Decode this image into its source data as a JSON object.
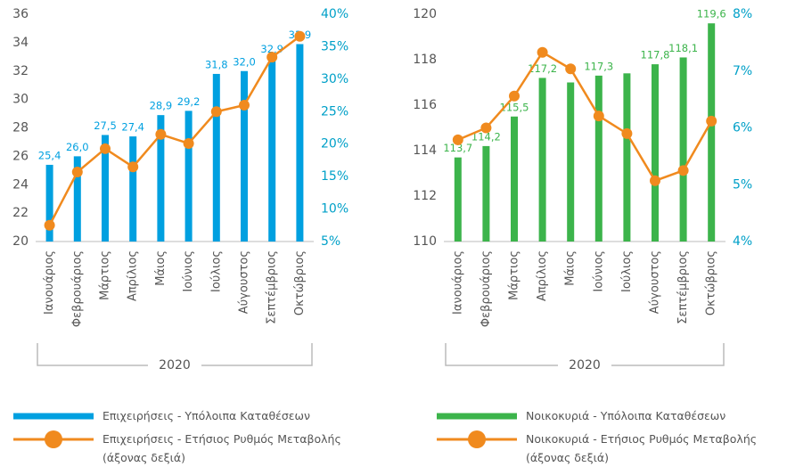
{
  "chart_data": [
    {
      "type": "combo",
      "categories": [
        "Ιανουάριος",
        "Φεβρουάριος",
        "Μάρτιος",
        "Απρίλιος",
        "Μάιος",
        "Ιούνιος",
        "Ιούλιος",
        "Αύγουστος",
        "Σεπτέμβριος",
        "Οκτώβριος"
      ],
      "x_group_label": "2020",
      "series": [
        {
          "name": "Επιχειρήσεις - Υπόλοιπα Καταθέσεων",
          "type": "bar",
          "color": "#00a0e0",
          "values": [
            25.4,
            26.0,
            27.5,
            27.4,
            28.9,
            29.2,
            31.8,
            32.0,
            32.9,
            33.9
          ],
          "value_labels": [
            "25,4",
            "26,0",
            "27,5",
            "27,4",
            "28,9",
            "29,2",
            "31,8",
            "32,0",
            "32,9",
            "33,9"
          ]
        },
        {
          "name": "Επιχειρήσεις - Ετήσιος Ρυθμός Μεταβολής (άξονας δεξιά)",
          "type": "line",
          "axis": "y2",
          "color": "#f08a1e",
          "values": [
            7.5,
            15.7,
            19.3,
            16.5,
            21.5,
            20.1,
            25.0,
            26.0,
            33.4,
            36.6
          ]
        }
      ],
      "ylim": [
        20,
        36
      ],
      "yticks": [
        20,
        22,
        24,
        26,
        28,
        30,
        32,
        34,
        36
      ],
      "y2lim": [
        5,
        40
      ],
      "y2ticks": [
        {
          "value": 5,
          "label": "5%"
        },
        {
          "value": 10,
          "label": "10%"
        },
        {
          "value": 15,
          "label": "15%"
        },
        {
          "value": 20,
          "label": "20%"
        },
        {
          "value": 25,
          "label": "25%"
        },
        {
          "value": 30,
          "label": "30%"
        },
        {
          "value": 35,
          "label": "35%"
        },
        {
          "value": 40,
          "label": "40%"
        }
      ]
    },
    {
      "type": "combo",
      "categories": [
        "Ιανουάριος",
        "Φεβρουάριος",
        "Μάρτιος",
        "Απρίλιος",
        "Μάιος",
        "Ιούνιος",
        "Ιούλιος",
        "Αύγουστος",
        "Σεπτέμβριος",
        "Οκτώβριος"
      ],
      "x_group_label": "2020",
      "series": [
        {
          "name": "Νοικοκυριά - Υπόλοιπα Καταθέσεων",
          "type": "bar",
          "color": "#3cb44b",
          "values": [
            113.7,
            114.2,
            115.5,
            117.2,
            117.0,
            117.3,
            117.4,
            117.8,
            118.1,
            119.6
          ],
          "value_labels": [
            "113,7",
            "114,2",
            "115,5",
            "117,2",
            null,
            "117,3",
            null,
            "117,8",
            "118,1",
            "119,6"
          ]
        },
        {
          "name": "Νοικοκυριά - Ετήσιος Ρυθμός Μεταβολής (άξονας δεξιά)",
          "type": "line",
          "axis": "y2",
          "color": "#f08a1e",
          "values": [
            5.79,
            6.0,
            6.56,
            7.33,
            7.04,
            6.21,
            5.9,
            5.07,
            5.25,
            6.12
          ]
        }
      ],
      "ylim": [
        110,
        120
      ],
      "yticks": [
        110,
        112,
        114,
        116,
        118,
        120
      ],
      "y2lim": [
        4,
        8
      ],
      "y2ticks": [
        {
          "value": 4,
          "label": "4%"
        },
        {
          "value": 5,
          "label": "5%"
        },
        {
          "value": 6,
          "label": "6%"
        },
        {
          "value": 7,
          "label": "7%"
        },
        {
          "value": 8,
          "label": "8%"
        }
      ]
    }
  ]
}
